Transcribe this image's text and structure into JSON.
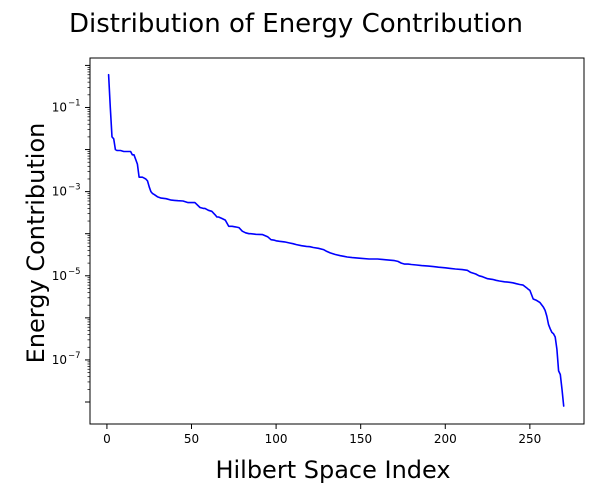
{
  "chart_data": {
    "type": "line",
    "title": "Distribution of Energy Contribution",
    "xlabel": "Hilbert Space Index",
    "ylabel": "Energy Contribution",
    "xlim": [
      -10,
      282
    ],
    "ylim": [
      3e-09,
      1.5
    ],
    "yscale": "log",
    "grid": false,
    "x_ticks": [
      0,
      50,
      100,
      150,
      200,
      250
    ],
    "y_ticks": [
      {
        "value": 0.1,
        "base": "10",
        "exponent": "−1"
      },
      {
        "value": 0.001,
        "base": "10",
        "exponent": "−3"
      },
      {
        "value": 1e-05,
        "base": "10",
        "exponent": "−5"
      },
      {
        "value": 1e-07,
        "base": "10",
        "exponent": "−7"
      }
    ],
    "series": [
      {
        "color": "#0000ff",
        "x": [
          1,
          2,
          3,
          4,
          5,
          6,
          8,
          10,
          12,
          14,
          15,
          16,
          18,
          19,
          20,
          21,
          22,
          23,
          24,
          25,
          26,
          27,
          28,
          30,
          32,
          35,
          38,
          40,
          42,
          45,
          48,
          50,
          52,
          55,
          57,
          58,
          60,
          62,
          64,
          65,
          66,
          68,
          70,
          72,
          74,
          76,
          78,
          80,
          82,
          84,
          85,
          88,
          92,
          95,
          97,
          99,
          100,
          102,
          105,
          108,
          110,
          112,
          115,
          118,
          120,
          122,
          125,
          128,
          130,
          132,
          135,
          138,
          140,
          142,
          145,
          150,
          155,
          160,
          165,
          170,
          172,
          174,
          176,
          178,
          180,
          183,
          186,
          190,
          193,
          196,
          200,
          203,
          206,
          210,
          213,
          215,
          218,
          220,
          222,
          225,
          228,
          230,
          232,
          235,
          238,
          240,
          242,
          244,
          246,
          248,
          249,
          250,
          252,
          254,
          256,
          258,
          259,
          260,
          261,
          262,
          263,
          264,
          265,
          266,
          267,
          268,
          269,
          270
        ],
        "y": [
          0.6,
          0.1,
          0.02,
          0.018,
          0.01,
          0.0095,
          0.0095,
          0.009,
          0.009,
          0.009,
          0.0075,
          0.0075,
          0.0045,
          0.0022,
          0.0022,
          0.0022,
          0.0021,
          0.002,
          0.0018,
          0.0013,
          0.001,
          0.0009,
          0.00085,
          0.00075,
          0.0007,
          0.00068,
          0.00063,
          0.00062,
          0.00061,
          0.0006,
          0.00055,
          0.00055,
          0.00055,
          0.00042,
          0.0004,
          0.0004,
          0.00036,
          0.00034,
          0.00028,
          0.00025,
          0.00025,
          0.00023,
          0.00021,
          0.00015,
          0.00015,
          0.000145,
          0.00014,
          0.000115,
          0.000105,
          0.0001,
          0.0001,
          9.7e-05,
          9.5e-05,
          8.5e-05,
          7.2e-05,
          7e-05,
          6.8e-05,
          6.6e-05,
          6.4e-05,
          6e-05,
          5.8e-05,
          5.5e-05,
          5.2e-05,
          5e-05,
          4.9e-05,
          4.7e-05,
          4.5e-05,
          4.2e-05,
          3.8e-05,
          3.5e-05,
          3.2e-05,
          3e-05,
          2.9e-05,
          2.8e-05,
          2.7e-05,
          2.6e-05,
          2.5e-05,
          2.5e-05,
          2.4e-05,
          2.3e-05,
          2.2e-05,
          2e-05,
          1.9e-05,
          1.9e-05,
          1.85e-05,
          1.8e-05,
          1.75e-05,
          1.7e-05,
          1.65e-05,
          1.6e-05,
          1.55e-05,
          1.5e-05,
          1.45e-05,
          1.4e-05,
          1.35e-05,
          1.2e-05,
          1.1e-05,
          1e-05,
          9.5e-06,
          8.5e-06,
          8.2e-06,
          7.8e-06,
          7.5e-06,
          7.2e-06,
          7e-06,
          6.8e-06,
          6.5e-06,
          6.2e-06,
          6e-06,
          5.2e-06,
          4.8e-06,
          4.5e-06,
          2.8e-06,
          2.6e-06,
          2.3e-06,
          1.8e-06,
          1.5e-06,
          1.1e-06,
          7e-07,
          5.5e-07,
          4.5e-07,
          4.2e-07,
          3.5e-07,
          1.8e-07,
          5.5e-08,
          4.5e-08,
          2e-08,
          8e-09
        ]
      }
    ]
  }
}
